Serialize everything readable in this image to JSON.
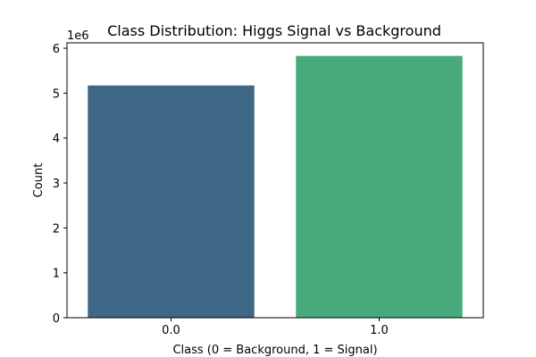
{
  "chart_data": {
    "type": "bar",
    "title": "Class Distribution: Higgs Signal vs Background",
    "xlabel": "Class (0 = Background, 1 = Signal)",
    "ylabel": "Count",
    "y_scale_note": "1e6",
    "categories": [
      "0.0",
      "1.0"
    ],
    "values": [
      5170877,
      5829123
    ],
    "colors": [
      "#3e6685",
      "#48a97a"
    ],
    "ylim": [
      0,
      6120000
    ],
    "y_ticks": [
      {
        "value": 0,
        "label": "0"
      },
      {
        "value": 1000000,
        "label": "1"
      },
      {
        "value": 2000000,
        "label": "2"
      },
      {
        "value": 3000000,
        "label": "3"
      },
      {
        "value": 4000000,
        "label": "4"
      },
      {
        "value": 5000000,
        "label": "5"
      },
      {
        "value": 6000000,
        "label": "6"
      }
    ],
    "grid": false,
    "legend": "none"
  }
}
